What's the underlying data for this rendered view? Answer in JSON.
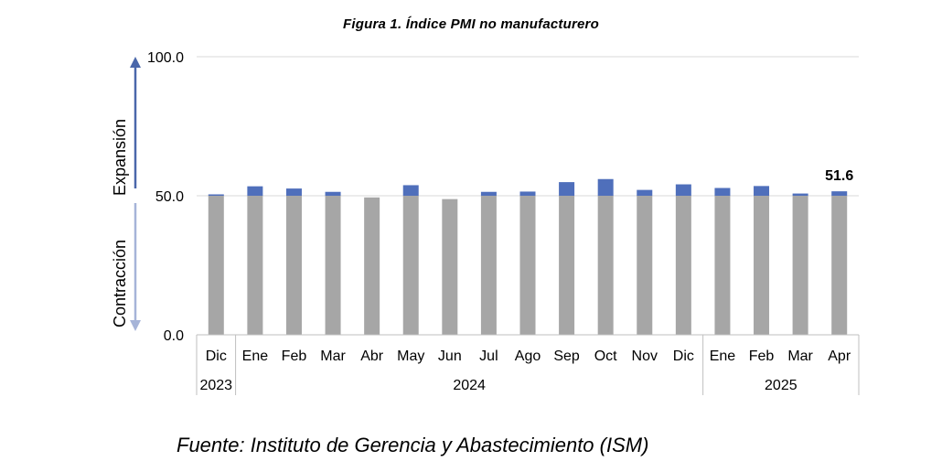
{
  "title": "Figura 1. Índice PMI no manufacturero",
  "source": "Fuente: Instituto de Gerencia y Abastecimiento (ISM)",
  "annotations": {
    "expansion": "Expansión",
    "contraction": "Contracción",
    "last_value": "51.6"
  },
  "colors": {
    "base_bar": "#a6a6a6",
    "expansion_bar": "#4f6fbb",
    "arrow_up": "#4a67aa",
    "arrow_down": "#a6b4d8",
    "grid": "#d9d9d9"
  },
  "chart_data": {
    "type": "bar",
    "title": "Figura 1. Índice PMI no manufacturero",
    "xlabel": "",
    "ylabel": "",
    "ylim": [
      0,
      100
    ],
    "y_ticks": [
      "0.0",
      "50.0",
      "100.0"
    ],
    "baseline": 50,
    "categories": [
      "Dic",
      "Ene",
      "Feb",
      "Mar",
      "Abr",
      "May",
      "Jun",
      "Jul",
      "Ago",
      "Sep",
      "Oct",
      "Nov",
      "Dic",
      "Ene",
      "Feb",
      "Mar",
      "Apr"
    ],
    "years": [
      {
        "label": "2023",
        "span": 1
      },
      {
        "label": "2024",
        "span": 12
      },
      {
        "label": "2025",
        "span": 4
      }
    ],
    "values": [
      50.5,
      53.4,
      52.6,
      51.4,
      49.4,
      53.8,
      48.8,
      51.4,
      51.5,
      54.9,
      56.0,
      52.1,
      54.1,
      52.8,
      53.5,
      50.8,
      51.6
    ],
    "grid": true,
    "legend": "none"
  }
}
